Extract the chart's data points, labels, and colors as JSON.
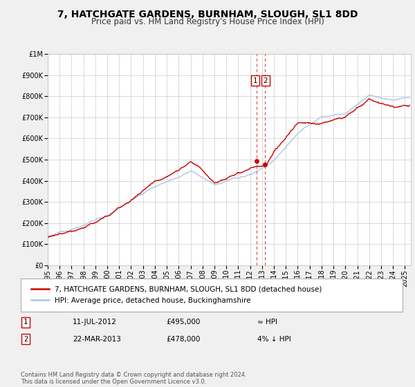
{
  "title": "7, HATCHGATE GARDENS, BURNHAM, SLOUGH, SL1 8DD",
  "subtitle": "Price paid vs. HM Land Registry's House Price Index (HPI)",
  "ylim": [
    0,
    1000000
  ],
  "yticks": [
    0,
    100000,
    200000,
    300000,
    400000,
    500000,
    600000,
    700000,
    800000,
    900000,
    1000000
  ],
  "ytick_labels": [
    "£0",
    "£100K",
    "£200K",
    "£300K",
    "£400K",
    "£500K",
    "£600K",
    "£700K",
    "£800K",
    "£900K",
    "£1M"
  ],
  "xlim_start": 1995.0,
  "xlim_end": 2025.5,
  "xticks": [
    1995,
    1996,
    1997,
    1998,
    1999,
    2000,
    2001,
    2002,
    2003,
    2004,
    2005,
    2006,
    2007,
    2008,
    2009,
    2010,
    2011,
    2012,
    2013,
    2014,
    2015,
    2016,
    2017,
    2018,
    2019,
    2020,
    2021,
    2022,
    2023,
    2024,
    2025
  ],
  "hpi_color": "#a8c8e8",
  "price_color": "#cc0000",
  "marker_color": "#cc0000",
  "vline_color": "#cc0000",
  "background_color": "#f0f0f0",
  "plot_bg_color": "#ffffff",
  "grid_color": "#cccccc",
  "legend_label_price": "7, HATCHGATE GARDENS, BURNHAM, SLOUGH, SL1 8DD (detached house)",
  "legend_label_hpi": "HPI: Average price, detached house, Buckinghamshire",
  "annotation1_label": "1",
  "annotation1_date": "11-JUL-2012",
  "annotation1_price": "£495,000",
  "annotation1_hpi": "≈ HPI",
  "annotation2_label": "2",
  "annotation2_date": "22-MAR-2013",
  "annotation2_price": "£478,000",
  "annotation2_hpi": "4% ↓ HPI",
  "sale1_x": 2012.53,
  "sale1_y": 495000,
  "sale2_x": 2013.22,
  "sale2_y": 478000,
  "vline1_x": 2012.53,
  "vline2_x": 2013.22,
  "footer": "Contains HM Land Registry data © Crown copyright and database right 2024.\nThis data is licensed under the Open Government Licence v3.0.",
  "title_fontsize": 10,
  "subtitle_fontsize": 8.5,
  "tick_fontsize": 7,
  "legend_fontsize": 7.5,
  "annotation_fontsize": 7.5,
  "footer_fontsize": 6
}
